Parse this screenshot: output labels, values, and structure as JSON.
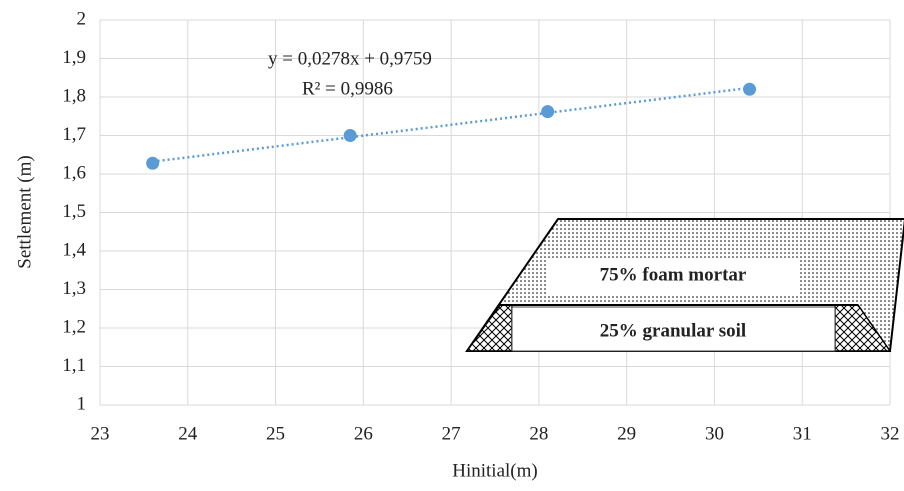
{
  "chart_data": {
    "type": "scatter",
    "x_label": "Hinitial(m)",
    "y_label": "Settlement (m)",
    "x": [
      23.6,
      25.85,
      28.1,
      30.4
    ],
    "series": [
      {
        "color": "#5b9bd5",
        "values": [
          1.628,
          1.7,
          1.762,
          1.82
        ]
      }
    ],
    "trendline": {
      "equation": "y = 0,0278x  + 0,9759",
      "r_squared": "R² = 0,9986",
      "style": "dotted"
    },
    "xlim": [
      23,
      32
    ],
    "xticks": [
      23,
      24,
      25,
      26,
      27,
      28,
      29,
      30,
      31,
      32
    ],
    "ylim": [
      1,
      2
    ],
    "yticks": [
      1,
      {
        "value": 1.1,
        "label": "1,1"
      },
      {
        "value": 1.2,
        "label": "1,2"
      },
      {
        "value": 1.3,
        "label": "1,3"
      },
      {
        "value": 1.4,
        "label": "1,4"
      },
      {
        "value": 1.5,
        "label": "1,5"
      },
      {
        "value": 1.6,
        "label": "1,6"
      },
      {
        "value": 1.7,
        "label": "1,7"
      },
      {
        "value": 1.8,
        "label": "1,8"
      },
      {
        "value": 1.9,
        "label": "1,9"
      },
      2
    ],
    "grid": true,
    "inset": {
      "top_label": "75% foam mortar",
      "bottom_label": "25% granular soil"
    }
  }
}
